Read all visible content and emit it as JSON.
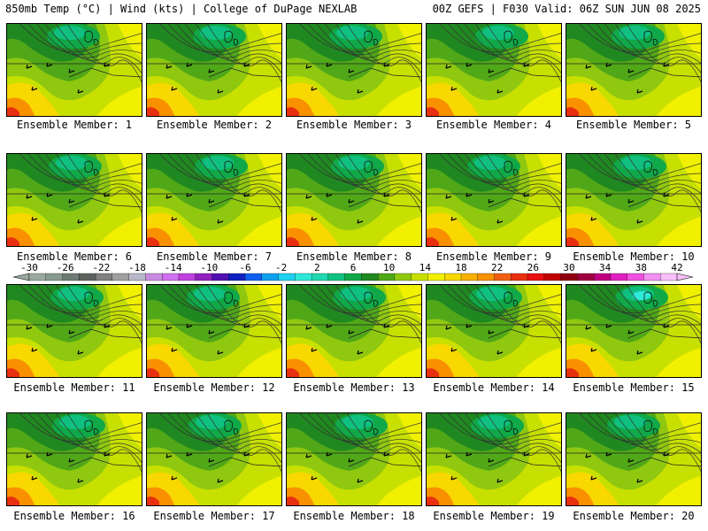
{
  "header": {
    "left": "850mb Temp (°C) | Wind (kts) | College of DuPage NEXLAB",
    "right": "00Z GEFS | F030 Valid: 06Z SUN JUN 08 2025"
  },
  "members": [
    {
      "label": "Ensemble Member: 1"
    },
    {
      "label": "Ensemble Member: 2"
    },
    {
      "label": "Ensemble Member: 3"
    },
    {
      "label": "Ensemble Member: 4"
    },
    {
      "label": "Ensemble Member: 5"
    },
    {
      "label": "Ensemble Member: 6"
    },
    {
      "label": "Ensemble Member: 7"
    },
    {
      "label": "Ensemble Member: 8"
    },
    {
      "label": "Ensemble Member: 9"
    },
    {
      "label": "Ensemble Member: 10"
    },
    {
      "label": "Ensemble Member: 11"
    },
    {
      "label": "Ensemble Member: 12"
    },
    {
      "label": "Ensemble Member: 13"
    },
    {
      "label": "Ensemble Member: 14"
    },
    {
      "label": "Ensemble Member: 15"
    },
    {
      "label": "Ensemble Member: 16"
    },
    {
      "label": "Ensemble Member: 17"
    },
    {
      "label": "Ensemble Member: 18"
    },
    {
      "label": "Ensemble Member: 19"
    },
    {
      "label": "Ensemble Member: 20"
    }
  ],
  "colorbar": {
    "labels": [
      "-30",
      "-26",
      "-22",
      "-18",
      "-14",
      "-10",
      "-6",
      "-2",
      "2",
      "6",
      "10",
      "14",
      "18",
      "22",
      "26",
      "30",
      "34",
      "38",
      "42"
    ],
    "colors": [
      "#9aa8a0",
      "#889a90",
      "#6e7a74",
      "#5e625f",
      "#808080",
      "#a0a0a0",
      "#b8b8c8",
      "#c88ce0",
      "#d070f0",
      "#c040e0",
      "#9020c0",
      "#5010b0",
      "#1020c0",
      "#1060f0",
      "#10a0f0",
      "#20d0f0",
      "#30e8d8",
      "#20d8b0",
      "#10c080",
      "#10a848",
      "#208820",
      "#50a818",
      "#90c810",
      "#c8e000",
      "#f0f000",
      "#f8d800",
      "#f8b000",
      "#f89000",
      "#f06010",
      "#e83010",
      "#e81010",
      "#c00000",
      "#900010",
      "#a00040",
      "#c00080",
      "#e020c0",
      "#f050e0",
      "#f090f0",
      "#f8c0f8"
    ]
  }
}
